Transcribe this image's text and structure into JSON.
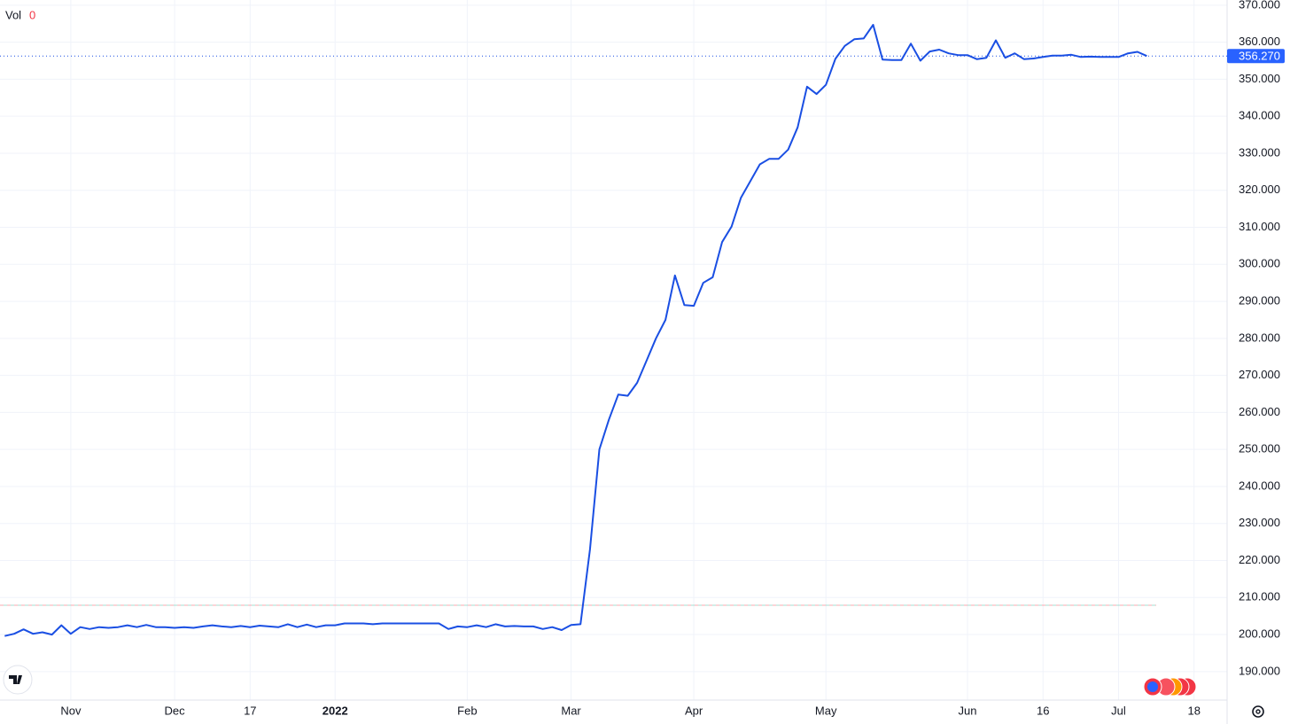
{
  "chart_data": {
    "type": "line",
    "indicator": {
      "name": "Vol",
      "value": "0"
    },
    "color": "#1a4fe3",
    "categories": [
      null,
      null,
      null,
      null,
      null,
      null,
      null,
      "Nov",
      null,
      null,
      null,
      null,
      null,
      null,
      null,
      null,
      null,
      null,
      "Dec",
      null,
      null,
      null,
      null,
      null,
      null,
      null,
      "17",
      null,
      null,
      null,
      null,
      null,
      null,
      null,
      null,
      "2022",
      null,
      null,
      null,
      null,
      null,
      null,
      null,
      null,
      null,
      null,
      null,
      null,
      null,
      "Feb",
      null,
      null,
      null,
      null,
      null,
      null,
      null,
      null,
      null,
      null,
      "Mar",
      null,
      null,
      null,
      null,
      null,
      null,
      null,
      null,
      null,
      null,
      null,
      null,
      "Apr",
      null,
      null,
      null,
      null,
      null,
      null,
      null,
      null,
      null,
      null,
      null,
      null,
      null,
      "May",
      null,
      null,
      null,
      null,
      null,
      null,
      null,
      null,
      null,
      null,
      null,
      null,
      null,
      null,
      "Jun",
      null,
      null,
      null,
      null,
      null,
      null,
      null,
      "16",
      null,
      null,
      null,
      null,
      null,
      null,
      null,
      "Jul",
      null,
      null,
      null,
      null,
      null,
      null,
      null,
      "18",
      null,
      null,
      null
    ],
    "values": [
      199.6,
      200.2,
      201.4,
      200.2,
      200.6,
      200.0,
      202.5,
      200.2,
      202.0,
      201.5,
      202.0,
      201.8,
      202.0,
      202.5,
      202.0,
      202.6,
      202.0,
      202.0,
      201.8,
      202.0,
      201.8,
      202.2,
      202.5,
      202.2,
      202.0,
      202.3,
      202.0,
      202.4,
      202.2,
      202.0,
      202.8,
      202.0,
      202.7,
      202.0,
      202.5,
      202.5,
      203.0,
      203.0,
      203.0,
      202.8,
      203.0,
      203.0,
      203.0,
      203.0,
      203.0,
      203.0,
      203.0,
      201.5,
      202.2,
      202.0,
      202.5,
      202.0,
      202.8,
      202.2,
      202.3,
      202.2,
      202.2,
      201.5,
      202.0,
      201.2,
      202.6,
      202.8,
      223.0,
      250.0,
      258.0,
      264.8,
      264.5,
      268.0,
      274.0,
      280.0,
      285.0,
      297.0,
      289.0,
      288.8,
      295.0,
      296.5,
      306.0,
      310.2,
      318.0,
      322.5,
      327.0,
      328.5,
      328.5,
      331.0,
      337.0,
      348.0,
      346.0,
      348.5,
      355.5,
      359.0,
      360.8,
      361.0,
      364.7,
      355.3,
      355.2,
      355.2,
      359.6,
      355.0,
      357.5,
      358.0,
      357.0,
      356.5,
      356.5,
      355.4,
      355.8,
      360.5,
      355.8,
      357.0,
      355.4,
      355.6,
      356.0,
      356.4,
      356.4,
      356.6,
      356.0,
      356.1,
      356.0,
      356.0,
      356.0,
      357.0,
      357.4,
      356.27,
      null,
      null,
      null,
      null,
      null,
      null,
      null,
      null
    ],
    "last_price": {
      "value": 356.27,
      "label": "356.270"
    },
    "reference_line": 207.9,
    "ylim": [
      182.3,
      371.4
    ],
    "yticks": [
      {
        "value": 190,
        "label": "190.000"
      },
      {
        "value": 200,
        "label": "200.000"
      },
      {
        "value": 210,
        "label": "210.000"
      },
      {
        "value": 220,
        "label": "220.000"
      },
      {
        "value": 230,
        "label": "230.000"
      },
      {
        "value": 240,
        "label": "240.000"
      },
      {
        "value": 250,
        "label": "250.000"
      },
      {
        "value": 260,
        "label": "260.000"
      },
      {
        "value": 270,
        "label": "270.000"
      },
      {
        "value": 280,
        "label": "280.000"
      },
      {
        "value": 290,
        "label": "290.000"
      },
      {
        "value": 300,
        "label": "300.000"
      },
      {
        "value": 310,
        "label": "310.000"
      },
      {
        "value": 320,
        "label": "320.000"
      },
      {
        "value": 330,
        "label": "330.000"
      },
      {
        "value": 340,
        "label": "340.000"
      },
      {
        "value": 350,
        "label": "350.000"
      },
      {
        "value": 360,
        "label": "360.000"
      },
      {
        "value": 370,
        "label": "370.000"
      }
    ],
    "grid": true
  }
}
